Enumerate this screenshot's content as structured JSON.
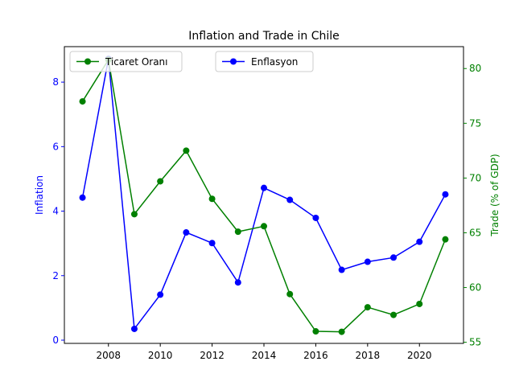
{
  "chart_data": {
    "type": "line",
    "title": "Inflation and Trade in Chile",
    "x": [
      2007,
      2008,
      2009,
      2010,
      2011,
      2012,
      2013,
      2014,
      2015,
      2016,
      2017,
      2018,
      2019,
      2020,
      2021
    ],
    "xlim": [
      2006.3,
      2021.7
    ],
    "xticks": [
      2008,
      2010,
      2012,
      2014,
      2016,
      2018,
      2020
    ],
    "grid": false,
    "left_axis": {
      "label": "Inflation",
      "color": "#0000ff",
      "ylim": [
        -0.1,
        9.1
      ],
      "ticks": [
        0,
        2,
        4,
        6,
        8
      ]
    },
    "right_axis": {
      "label": "Trade (% of GDP)",
      "color": "#008000",
      "ylim": [
        54.9,
        82.0
      ],
      "ticks": [
        55,
        60,
        65,
        70,
        75,
        80
      ]
    },
    "series": [
      {
        "name": "Enflasyon",
        "axis": "left",
        "color": "#0000ff",
        "values": [
          4.42,
          8.72,
          0.35,
          1.41,
          3.34,
          3.01,
          1.79,
          4.72,
          4.35,
          3.79,
          2.18,
          2.43,
          2.56,
          3.05,
          4.52
        ]
      },
      {
        "name": "Ticaret Oranı",
        "axis": "right",
        "color": "#008000",
        "values": [
          77.0,
          80.8,
          66.7,
          69.7,
          72.5,
          68.1,
          65.1,
          65.6,
          59.4,
          56.0,
          55.96,
          58.2,
          57.5,
          58.5,
          64.4
        ]
      }
    ],
    "legends": [
      {
        "location": "upper-left",
        "entries": [
          "Ticaret Oranı"
        ]
      },
      {
        "location": "upper-center",
        "entries": [
          "Enflasyon"
        ]
      }
    ]
  }
}
